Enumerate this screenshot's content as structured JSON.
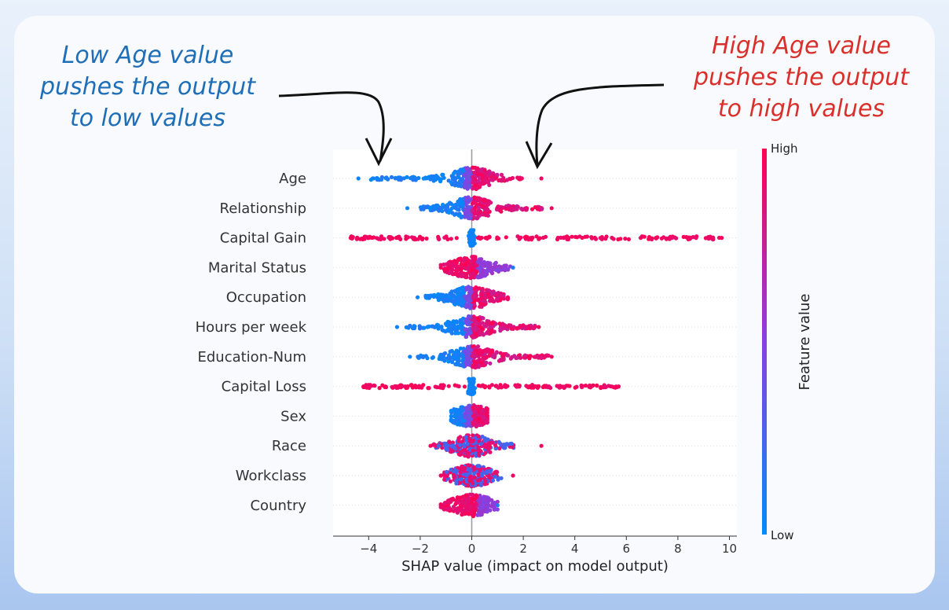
{
  "annotations": {
    "left": {
      "lines": [
        "Low Age value",
        "pushes the output",
        "to low values"
      ],
      "color": "#1f6fb8"
    },
    "right": {
      "lines": [
        "High Age value",
        "pushes the output",
        "to high values"
      ],
      "color": "#d9302c"
    }
  },
  "chart_data": {
    "type": "scatter",
    "subtype": "shap-beeswarm-summary",
    "xlabel": "SHAP value (impact on model output)",
    "xlim": [
      -5.4,
      10.3
    ],
    "xticks": [
      -4,
      -2,
      0,
      2,
      4,
      6,
      8,
      10
    ],
    "xtick_labels": [
      "−4",
      "−2",
      "0",
      "2",
      "4",
      "6",
      "8",
      "10"
    ],
    "features": [
      {
        "name": "Age",
        "min": -4.4,
        "max": 2.7,
        "low_side": "left",
        "dense": [
          -4.0,
          2.0
        ]
      },
      {
        "name": "Relationship",
        "min": -2.5,
        "max": 3.1,
        "low_side": "left",
        "dense": [
          -2.0,
          2.8
        ]
      },
      {
        "name": "Capital Gain",
        "min": -4.7,
        "max": 9.7,
        "low_side": "center",
        "dense": [
          -4.7,
          9.7
        ]
      },
      {
        "name": "Marital Status",
        "min": -1.2,
        "max": 1.6,
        "low_side": "right",
        "dense": [
          -1.1,
          1.5
        ]
      },
      {
        "name": "Occupation",
        "min": -2.1,
        "max": 1.4,
        "low_side": "left",
        "dense": [
          -1.8,
          1.3
        ]
      },
      {
        "name": "Hours per week",
        "min": -2.9,
        "max": 2.6,
        "low_side": "left",
        "dense": [
          -2.6,
          2.5
        ]
      },
      {
        "name": "Education-Num",
        "min": -2.4,
        "max": 3.1,
        "low_side": "left",
        "dense": [
          -2.1,
          3.0
        ]
      },
      {
        "name": "Capital Loss",
        "min": -4.2,
        "max": 5.7,
        "low_side": "center",
        "dense": [
          -4.2,
          5.7
        ]
      },
      {
        "name": "Sex",
        "min": -0.8,
        "max": 0.6,
        "low_side": "left",
        "dense": [
          -0.7,
          0.5
        ]
      },
      {
        "name": "Race",
        "min": -1.6,
        "max": 2.7,
        "low_side": "mixed",
        "dense": [
          -1.5,
          1.7
        ]
      },
      {
        "name": "Workclass",
        "min": -1.2,
        "max": 1.6,
        "low_side": "mixed",
        "dense": [
          -1.1,
          1.0
        ]
      },
      {
        "name": "Country",
        "min": -1.2,
        "max": 1.0,
        "low_side": "right",
        "dense": [
          -1.1,
          0.9
        ]
      }
    ],
    "colorbar": {
      "label": "Feature value",
      "high_label": "High",
      "low_label": "Low",
      "high_color": "#ff0052",
      "mid_color": "#8a3fe0",
      "low_color": "#008bfb"
    }
  }
}
